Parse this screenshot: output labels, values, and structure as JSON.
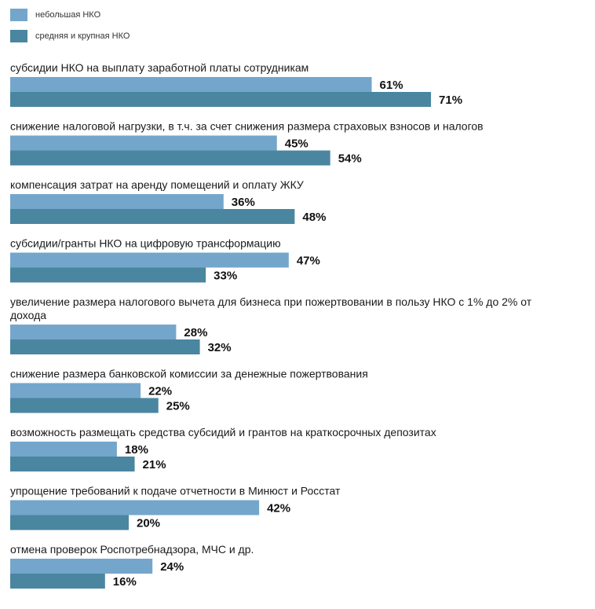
{
  "legend": {
    "small": "небольшая НКО",
    "large": "средняя и крупная НКО"
  },
  "colors": {
    "small": "#74a6cc",
    "large": "#4a86a0"
  },
  "chart_data": {
    "type": "bar",
    "orientation": "horizontal",
    "categories": [
      "субсидии НКО на выплату заработной платы сотрудникам",
      "снижение налоговой нагрузки, в т.ч. за счет снижения размера страховых взносов и налогов",
      "компенсация затрат на аренду помещений и оплату ЖКУ",
      "субсидии/гранты НКО на цифровую трансформацию",
      "увеличение размера налогового вычета для бизнеса при пожертвовании в пользу НКО с 1% до 2% от дохода",
      "снижение размера банковской комиссии за денежные пожертвования",
      "возможность размещать средства субсидий и грантов на краткосрочных депозитах",
      "упрощение требований к подаче отчетности в Минюст и Росстат",
      "отмена проверок Роспотребнадзора, МЧС и др."
    ],
    "series": [
      {
        "name": "небольшая НКО",
        "values": [
          61,
          45,
          36,
          47,
          28,
          22,
          18,
          42,
          24
        ]
      },
      {
        "name": "средняя и крупная НКО",
        "values": [
          71,
          54,
          48,
          33,
          32,
          25,
          21,
          20,
          16
        ]
      }
    ],
    "value_suffix": "%",
    "legend_position": "top-left",
    "grid": false,
    "xlim": [
      0,
      100
    ]
  }
}
